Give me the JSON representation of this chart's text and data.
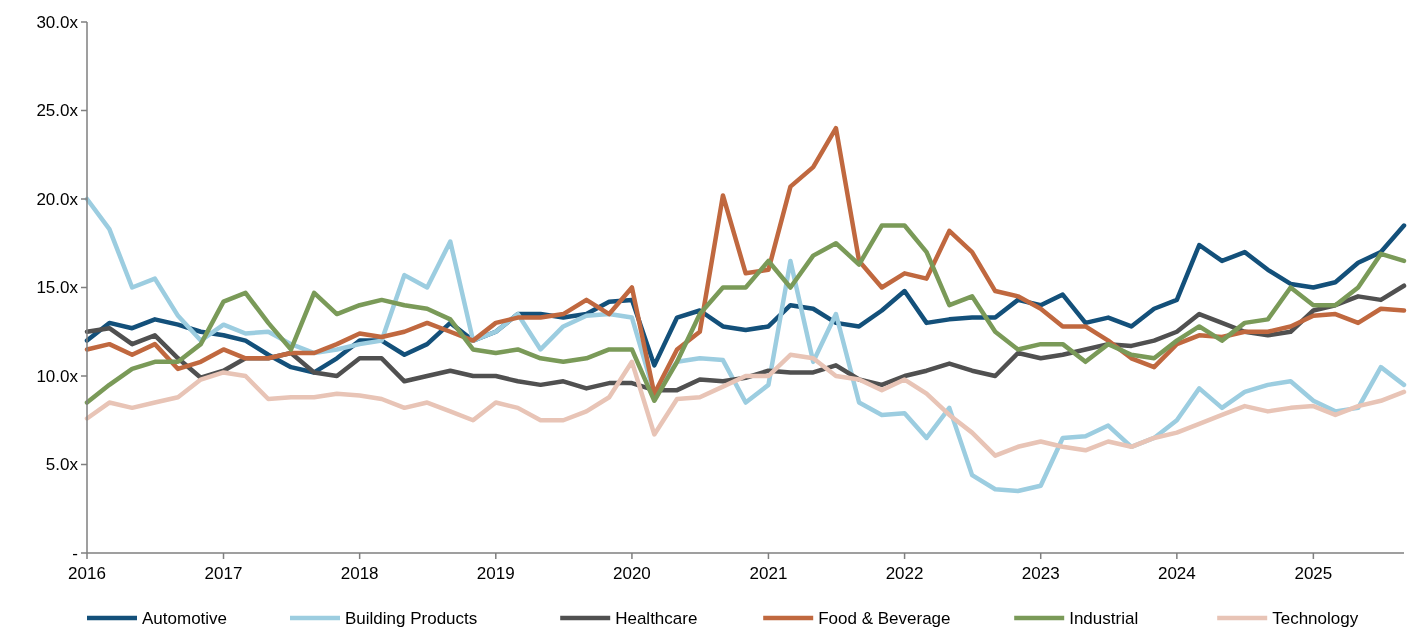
{
  "chart_data": {
    "type": "line",
    "x": [
      "2016-01",
      "2016-03",
      "2016-05",
      "2016-07",
      "2016-09",
      "2016-11",
      "2017-01",
      "2017-03",
      "2017-05",
      "2017-07",
      "2017-09",
      "2017-11",
      "2018-01",
      "2018-03",
      "2018-05",
      "2018-07",
      "2018-09",
      "2018-11",
      "2019-01",
      "2019-03",
      "2019-05",
      "2019-07",
      "2019-09",
      "2019-11",
      "2020-01",
      "2020-03",
      "2020-05",
      "2020-07",
      "2020-09",
      "2020-11",
      "2021-01",
      "2021-03",
      "2021-05",
      "2021-07",
      "2021-09",
      "2021-11",
      "2022-01",
      "2022-03",
      "2022-05",
      "2022-07",
      "2022-09",
      "2022-11",
      "2023-01",
      "2023-03",
      "2023-05",
      "2023-07",
      "2023-09",
      "2023-11",
      "2024-01",
      "2024-03",
      "2024-05",
      "2024-07",
      "2024-09",
      "2024-11",
      "2025-01",
      "2025-03",
      "2025-05",
      "2025-07",
      "2025-09"
    ],
    "series": [
      {
        "name": "Automotive",
        "color": "#13507a",
        "values": [
          12.0,
          13.0,
          12.7,
          13.2,
          12.9,
          12.5,
          12.3,
          12.0,
          11.2,
          10.5,
          10.2,
          11.0,
          12.0,
          12.0,
          11.2,
          11.8,
          13.0,
          12.0,
          12.5,
          13.5,
          13.5,
          13.3,
          13.5,
          14.2,
          14.3,
          10.6,
          13.3,
          13.7,
          12.8,
          12.6,
          12.8,
          14.0,
          13.8,
          13.0,
          12.8,
          13.7,
          14.8,
          13.0,
          13.2,
          13.3,
          13.3,
          14.3,
          14.0,
          14.6,
          13.0,
          13.3,
          12.8,
          13.8,
          14.3,
          17.4,
          16.5,
          17.0,
          16.0,
          15.2,
          15.0,
          15.3,
          16.4,
          17.0,
          18.5
        ]
      },
      {
        "name": "Building Products",
        "color": "#9ccde0",
        "values": [
          20.0,
          18.3,
          15.0,
          15.5,
          13.4,
          12.0,
          12.9,
          12.4,
          12.5,
          11.8,
          11.3,
          11.5,
          11.8,
          12.0,
          15.7,
          15.0,
          17.6,
          12.0,
          12.5,
          13.5,
          11.5,
          12.8,
          13.4,
          13.5,
          13.3,
          9.0,
          10.8,
          11.0,
          10.9,
          8.5,
          9.5,
          16.5,
          10.8,
          13.5,
          8.5,
          7.8,
          7.9,
          6.5,
          8.2,
          4.4,
          3.6,
          3.5,
          3.8,
          6.5,
          6.6,
          7.2,
          6.0,
          6.5,
          7.5,
          9.3,
          8.2,
          9.1,
          9.5,
          9.7,
          8.6,
          8.0,
          8.2,
          10.5,
          9.5
        ]
      },
      {
        "name": "Healthcare",
        "color": "#505050",
        "values": [
          12.5,
          12.7,
          11.8,
          12.3,
          11.0,
          9.9,
          10.3,
          11.0,
          11.0,
          11.3,
          10.2,
          10.0,
          11.0,
          11.0,
          9.7,
          10.0,
          10.3,
          10.0,
          10.0,
          9.7,
          9.5,
          9.7,
          9.3,
          9.6,
          9.6,
          9.2,
          9.2,
          9.8,
          9.7,
          9.9,
          10.3,
          10.2,
          10.2,
          10.6,
          9.8,
          9.5,
          10.0,
          10.3,
          10.7,
          10.3,
          10.0,
          11.3,
          11.0,
          11.2,
          11.5,
          11.8,
          11.7,
          12.0,
          12.5,
          13.5,
          13.0,
          12.5,
          12.3,
          12.5,
          13.7,
          14.0,
          14.5,
          14.3,
          15.1
        ]
      },
      {
        "name": "Food & Beverage",
        "color": "#c0683f",
        "values": [
          11.5,
          11.8,
          11.2,
          11.8,
          10.4,
          10.8,
          11.5,
          11.0,
          11.0,
          11.3,
          11.3,
          11.8,
          12.4,
          12.2,
          12.5,
          13.0,
          12.5,
          12.0,
          13.0,
          13.3,
          13.3,
          13.5,
          14.3,
          13.5,
          15.0,
          9.0,
          11.5,
          12.5,
          20.2,
          15.8,
          16.0,
          20.7,
          21.8,
          24.0,
          16.5,
          15.0,
          15.8,
          15.5,
          18.2,
          17.0,
          14.8,
          14.5,
          13.8,
          12.8,
          12.8,
          12.0,
          11.0,
          10.5,
          11.8,
          12.3,
          12.2,
          12.5,
          12.5,
          12.8,
          13.4,
          13.5,
          13.0,
          13.8,
          13.7
        ]
      },
      {
        "name": "Industrial",
        "color": "#7a9a58",
        "values": [
          8.5,
          9.5,
          10.4,
          10.8,
          10.8,
          11.8,
          14.2,
          14.7,
          13.0,
          11.5,
          14.7,
          13.5,
          14.0,
          14.3,
          14.0,
          13.8,
          13.2,
          11.5,
          11.3,
          11.5,
          11.0,
          10.8,
          11.0,
          11.5,
          11.5,
          8.6,
          10.8,
          13.5,
          15.0,
          15.0,
          16.5,
          15.0,
          16.8,
          17.5,
          16.3,
          18.5,
          18.5,
          17.0,
          14.0,
          14.5,
          12.5,
          11.5,
          11.8,
          11.8,
          10.8,
          11.8,
          11.2,
          11.0,
          12.0,
          12.8,
          12.0,
          13.0,
          13.2,
          15.0,
          14.0,
          14.0,
          15.0,
          16.9,
          16.5
        ]
      },
      {
        "name": "Technology",
        "color": "#e8c4b6",
        "values": [
          7.6,
          8.5,
          8.2,
          8.5,
          8.8,
          9.8,
          10.2,
          10.0,
          8.7,
          8.8,
          8.8,
          9.0,
          8.9,
          8.7,
          8.2,
          8.5,
          8.0,
          7.5,
          8.5,
          8.2,
          7.5,
          7.5,
          8.0,
          8.8,
          10.8,
          6.7,
          8.7,
          8.8,
          9.4,
          10.0,
          10.0,
          11.2,
          11.0,
          10.0,
          9.8,
          9.2,
          9.8,
          9.0,
          7.8,
          6.8,
          5.5,
          6.0,
          6.3,
          6.0,
          5.8,
          6.3,
          6.0,
          6.5,
          6.8,
          7.3,
          7.8,
          8.3,
          8.0,
          8.2,
          8.3,
          7.8,
          8.3,
          8.6,
          9.1
        ]
      }
    ],
    "xlim": [
      "2016-01",
      "2025-09"
    ],
    "xticks": [
      "2016",
      "2017",
      "2018",
      "2019",
      "2020",
      "2021",
      "2022",
      "2023",
      "2024",
      "2025"
    ],
    "ylim": [
      0,
      30
    ],
    "yticks": [
      {
        "value": 0,
        "label": "-"
      },
      {
        "value": 5,
        "label": "5.0x"
      },
      {
        "value": 10,
        "label": "10.0x"
      },
      {
        "value": 15,
        "label": "15.0x"
      },
      {
        "value": 20,
        "label": "20.0x"
      },
      {
        "value": 25,
        "label": "25.0x"
      },
      {
        "value": 30,
        "label": "30.0x"
      }
    ],
    "legend": "bottom",
    "grid": false,
    "line_style": "solid",
    "marker": "none"
  }
}
